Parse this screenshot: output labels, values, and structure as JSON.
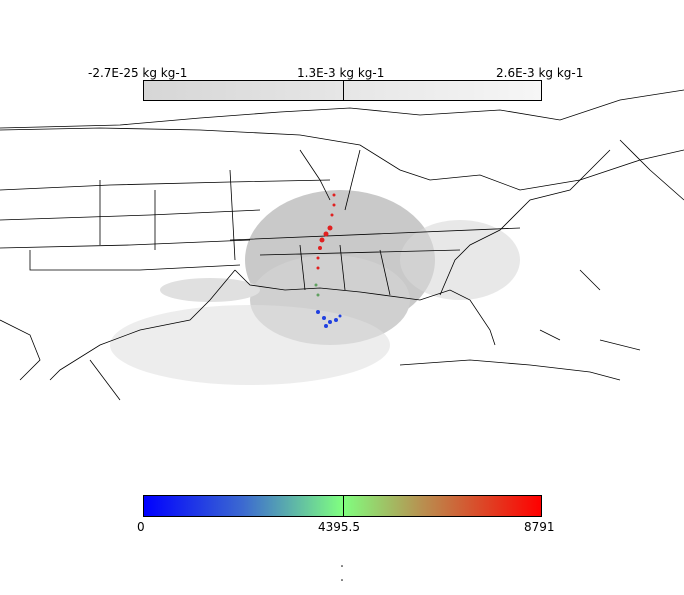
{
  "top_colorbar": {
    "min_label": "-2.7E-25 kg kg-1",
    "mid_label": "1.3E-3 kg kg-1",
    "max_label": "2.6E-3 kg kg-1",
    "colors": [
      "#d6d6d6",
      "#f6f6f6"
    ]
  },
  "bottom_colorbar": {
    "min_label": "0",
    "mid_label": "4395.5",
    "max_label": "8791",
    "colors": [
      "#0000ff",
      "#80ff80",
      "#ff0000"
    ]
  }
}
